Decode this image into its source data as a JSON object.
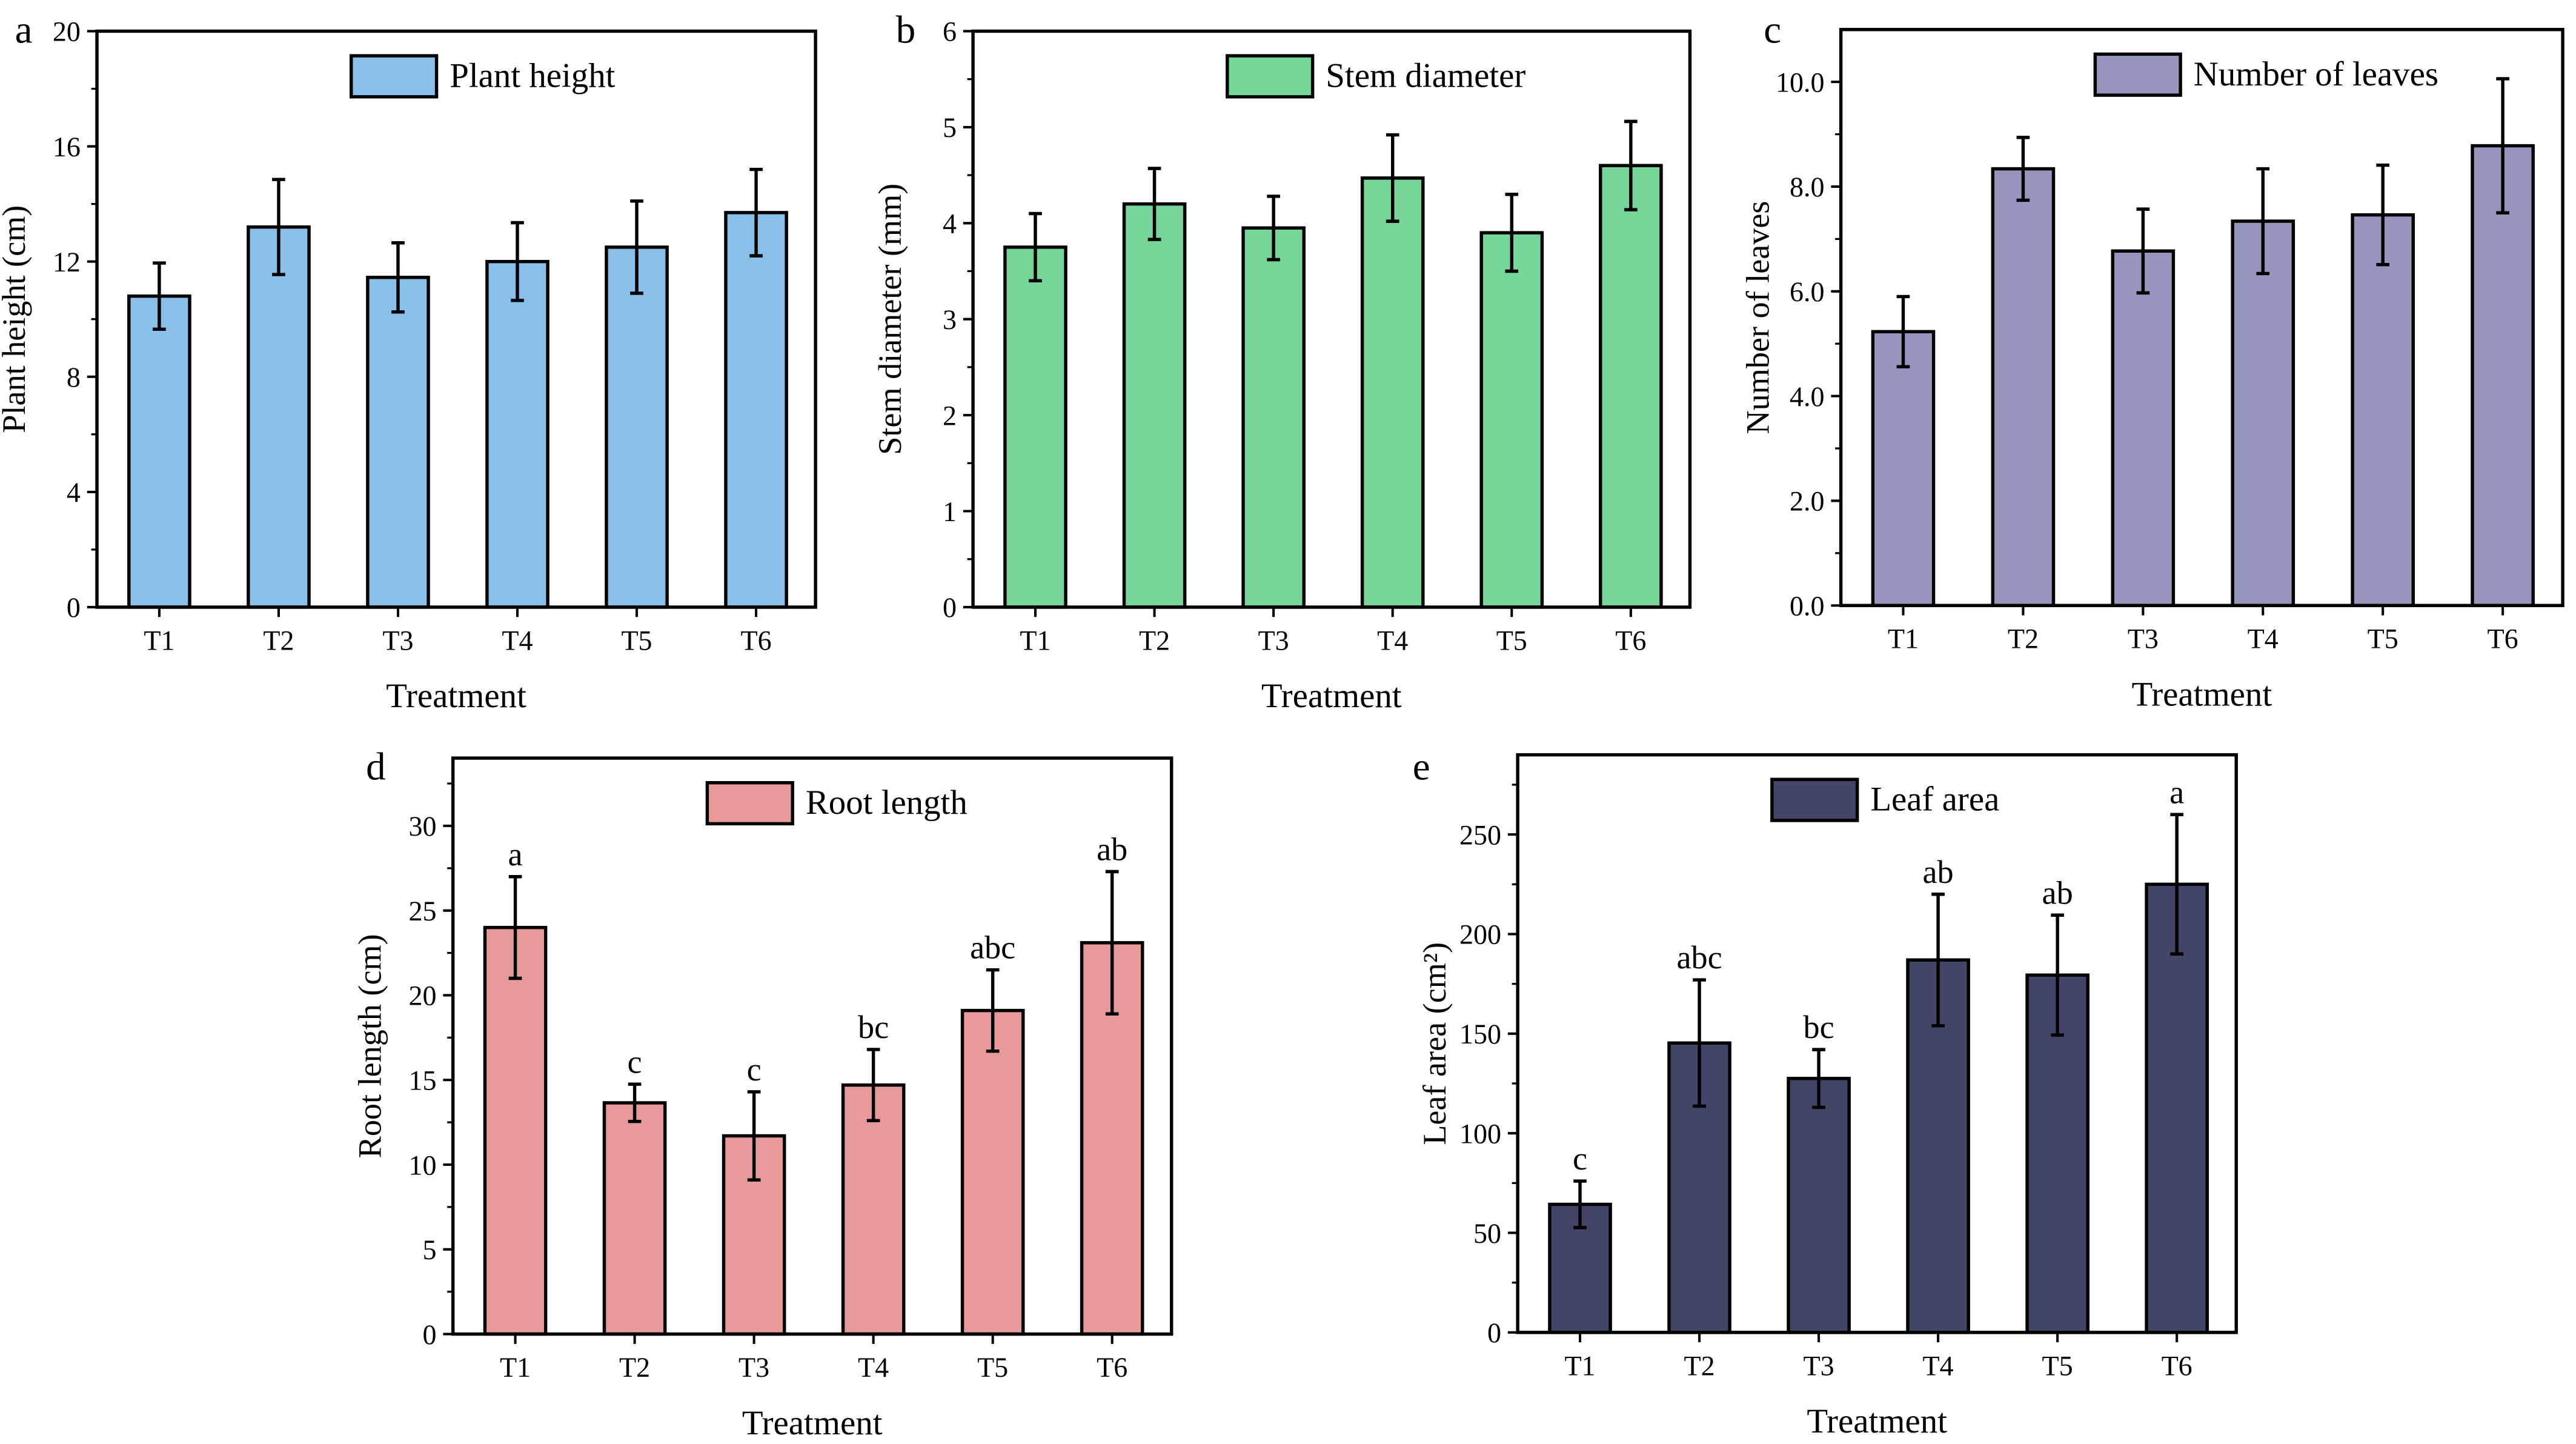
{
  "chart_data": [
    {
      "panel": "a",
      "type": "bar",
      "legend": "Plant height",
      "legend_position": "top-center",
      "xlabel": "Treatment",
      "ylabel": "Plant height (cm)",
      "ylim": [
        0,
        20
      ],
      "yticks": [
        0,
        4,
        8,
        12,
        16,
        20
      ],
      "color": "#88c0ea",
      "categories": [
        "T1",
        "T2",
        "T3",
        "T4",
        "T5",
        "T6"
      ],
      "values": [
        10.8,
        13.2,
        11.45,
        12.0,
        12.5,
        13.7
      ],
      "errors": [
        1.15,
        1.65,
        1.2,
        1.35,
        1.6,
        1.5
      ],
      "letters": []
    },
    {
      "panel": "b",
      "type": "bar",
      "legend": "Stem diameter",
      "legend_position": "top-center",
      "xlabel": "Treatment",
      "ylabel": "Stem diameter (mm)",
      "ylim": [
        0,
        6
      ],
      "yticks": [
        0,
        1,
        2,
        3,
        4,
        5,
        6
      ],
      "color": "#76d69a",
      "categories": [
        "T1",
        "T2",
        "T3",
        "T4",
        "T5",
        "T6"
      ],
      "values": [
        3.75,
        4.2,
        3.95,
        4.47,
        3.9,
        4.6
      ],
      "errors": [
        0.35,
        0.37,
        0.33,
        0.45,
        0.4,
        0.46
      ],
      "letters": []
    },
    {
      "panel": "c",
      "type": "bar",
      "legend": "Number of leaves",
      "legend_position": "top-center",
      "xlabel": "Treatment",
      "ylabel": "Number of leaves",
      "ylim": [
        0,
        11
      ],
      "yticks": [
        0,
        2,
        4,
        6,
        8,
        10
      ],
      "tick_format": "0.0",
      "color": "#9696bc",
      "categories": [
        "T1",
        "T2",
        "T3",
        "T4",
        "T5",
        "T6"
      ],
      "values": [
        5.23,
        8.34,
        6.77,
        7.34,
        7.46,
        8.78
      ],
      "errors": [
        0.67,
        0.6,
        0.8,
        1.0,
        0.95,
        1.28
      ],
      "letters": []
    },
    {
      "panel": "d",
      "type": "bar",
      "legend": "Root length",
      "legend_position": "top-center",
      "xlabel": "Treatment",
      "ylabel": "Root length (cm)",
      "ylim": [
        0,
        34
      ],
      "yticks": [
        0,
        5,
        10,
        15,
        20,
        25,
        30
      ],
      "color": "#e89a9a",
      "categories": [
        "T1",
        "T2",
        "T3",
        "T4",
        "T5",
        "T6"
      ],
      "values": [
        24.0,
        13.65,
        11.7,
        14.7,
        19.1,
        23.1
      ],
      "errors": [
        3.0,
        1.1,
        2.6,
        2.1,
        2.4,
        4.2
      ],
      "letters": [
        "a",
        "c",
        "c",
        "bc",
        "abc",
        "ab"
      ]
    },
    {
      "panel": "e",
      "type": "bar",
      "legend": "Leaf area",
      "legend_position": "top-center",
      "xlabel": "Treatment",
      "ylabel": "Leaf area (cm²)",
      "ylim": [
        0,
        290
      ],
      "yticks": [
        0,
        50,
        100,
        150,
        200,
        250
      ],
      "color": "#434566",
      "categories": [
        "T1",
        "T2",
        "T3",
        "T4",
        "T5",
        "T6"
      ],
      "values": [
        64.3,
        145.3,
        127.5,
        187,
        179.4,
        225
      ],
      "errors": [
        11.7,
        31.7,
        14.5,
        33,
        30.1,
        35
      ],
      "letters": [
        "c",
        "abc",
        "bc",
        "ab",
        "ab",
        "a"
      ]
    }
  ]
}
